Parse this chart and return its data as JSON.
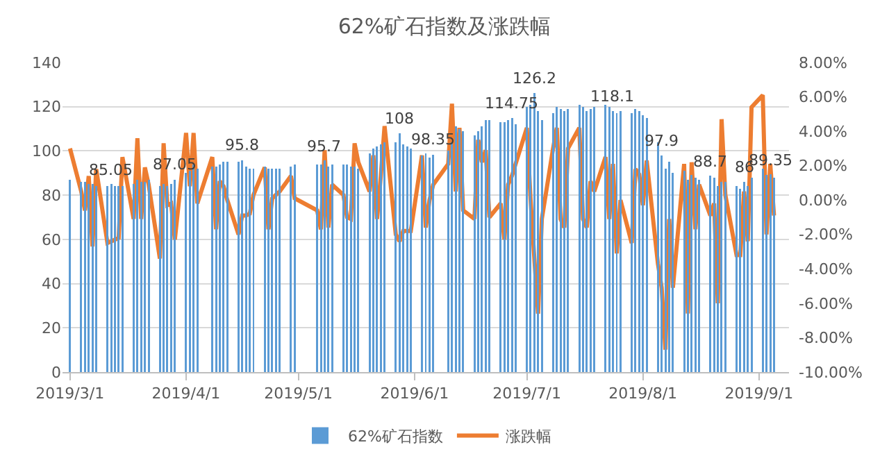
{
  "chart_data": {
    "type": "bar",
    "title": "62%矿石指数及涨跌幅",
    "x": [
      "2019-03-01",
      "2019-03-04",
      "2019-03-05",
      "2019-03-06",
      "2019-03-07",
      "2019-03-08",
      "2019-03-11",
      "2019-03-12",
      "2019-03-13",
      "2019-03-14",
      "2019-03-15",
      "2019-03-18",
      "2019-03-19",
      "2019-03-20",
      "2019-03-21",
      "2019-03-22",
      "2019-03-25",
      "2019-03-26",
      "2019-03-27",
      "2019-03-28",
      "2019-03-29",
      "2019-04-01",
      "2019-04-02",
      "2019-04-03",
      "2019-04-04",
      "2019-04-08",
      "2019-04-09",
      "2019-04-10",
      "2019-04-11",
      "2019-04-12",
      "2019-04-15",
      "2019-04-16",
      "2019-04-17",
      "2019-04-18",
      "2019-04-19",
      "2019-04-22",
      "2019-04-23",
      "2019-04-24",
      "2019-04-25",
      "2019-04-26",
      "2019-04-29",
      "2019-04-30",
      "2019-05-06",
      "2019-05-07",
      "2019-05-08",
      "2019-05-09",
      "2019-05-10",
      "2019-05-13",
      "2019-05-14",
      "2019-05-15",
      "2019-05-16",
      "2019-05-17",
      "2019-05-20",
      "2019-05-21",
      "2019-05-22",
      "2019-05-23",
      "2019-05-24",
      "2019-05-27",
      "2019-05-28",
      "2019-05-29",
      "2019-05-30",
      "2019-05-31",
      "2019-06-03",
      "2019-06-04",
      "2019-06-05",
      "2019-06-06",
      "2019-06-10",
      "2019-06-11",
      "2019-06-12",
      "2019-06-13",
      "2019-06-14",
      "2019-06-17",
      "2019-06-18",
      "2019-06-19",
      "2019-06-20",
      "2019-06-21",
      "2019-06-24",
      "2019-06-25",
      "2019-06-26",
      "2019-06-27",
      "2019-06-28",
      "2019-07-01",
      "2019-07-02",
      "2019-07-03",
      "2019-07-04",
      "2019-07-05",
      "2019-07-08",
      "2019-07-09",
      "2019-07-10",
      "2019-07-11",
      "2019-07-12",
      "2019-07-15",
      "2019-07-16",
      "2019-07-17",
      "2019-07-18",
      "2019-07-19",
      "2019-07-22",
      "2019-07-23",
      "2019-07-24",
      "2019-07-25",
      "2019-07-26",
      "2019-07-29",
      "2019-07-30",
      "2019-07-31",
      "2019-08-01",
      "2019-08-02",
      "2019-08-05",
      "2019-08-06",
      "2019-08-07",
      "2019-08-08",
      "2019-08-09",
      "2019-08-12",
      "2019-08-13",
      "2019-08-14",
      "2019-08-15",
      "2019-08-16",
      "2019-08-19",
      "2019-08-20",
      "2019-08-21",
      "2019-08-22",
      "2019-08-23",
      "2019-08-26",
      "2019-08-27",
      "2019-08-28",
      "2019-08-29",
      "2019-08-30",
      "2019-09-02",
      "2019-09-03",
      "2019-09-04",
      "2019-09-05"
    ],
    "series": [
      {
        "name": "62%矿石指数",
        "color": "#5b9bd5",
        "values": [
          87,
          86,
          86,
          85,
          85,
          84,
          84,
          85.05,
          84,
          84,
          84,
          85,
          87,
          86,
          86,
          87,
          84,
          85,
          84,
          85,
          87.05,
          90,
          91,
          94,
          92,
          93,
          93,
          94,
          95,
          95,
          95,
          95.8,
          93,
          92,
          92,
          93,
          92,
          92,
          92,
          92,
          93,
          94,
          94,
          94,
          95.7,
          93,
          94,
          94,
          94,
          93,
          93,
          92,
          99,
          101,
          102,
          103,
          104,
          104,
          108,
          103,
          102,
          101,
          98,
          99,
          97,
          98.35,
          100,
          104,
          111,
          110,
          109,
          107,
          109,
          111,
          114,
          114,
          113,
          113,
          114,
          114.75,
          112,
          120,
          121,
          126.2,
          118,
          114,
          117,
          120,
          119,
          118,
          119,
          121,
          120,
          118,
          119,
          120,
          121,
          120,
          118.1,
          117,
          118,
          117,
          119,
          118,
          116,
          115,
          104,
          97.9,
          92,
          95,
          90,
          91,
          87,
          89,
          88,
          87,
          88.7,
          88,
          84,
          86,
          86,
          84,
          83,
          86,
          84,
          88,
          92,
          89,
          89.35,
          88
        ],
        "value_labels": [
          null,
          null,
          null,
          null,
          null,
          null,
          null,
          "85.05",
          null,
          null,
          null,
          null,
          null,
          null,
          null,
          null,
          null,
          null,
          null,
          null,
          "87.05",
          null,
          null,
          null,
          null,
          null,
          null,
          null,
          null,
          null,
          null,
          "95.8",
          null,
          null,
          null,
          null,
          null,
          null,
          null,
          null,
          null,
          null,
          null,
          null,
          "95.7",
          null,
          null,
          null,
          null,
          null,
          null,
          null,
          null,
          null,
          null,
          null,
          null,
          null,
          "108",
          null,
          null,
          null,
          null,
          null,
          null,
          "98.35",
          null,
          null,
          null,
          null,
          null,
          null,
          null,
          null,
          null,
          null,
          null,
          null,
          null,
          "114.75",
          null,
          null,
          null,
          "126.2",
          null,
          null,
          null,
          null,
          null,
          null,
          null,
          null,
          null,
          null,
          null,
          null,
          null,
          null,
          "118.1",
          null,
          null,
          null,
          null,
          null,
          null,
          null,
          null,
          "97.9",
          null,
          null,
          null,
          null,
          null,
          null,
          null,
          null,
          "88.7",
          null,
          null,
          null,
          null,
          null,
          null,
          "86",
          null,
          null,
          null,
          null,
          "89.35",
          null
        ]
      },
      {
        "name": "涨跌幅",
        "type": "line",
        "axis": "y2",
        "color": "#ed7d31",
        "values": [
          3.0,
          0.5,
          -0.6,
          1.4,
          -2.7,
          1.8,
          -2.5,
          -2.4,
          -2.3,
          -2.2,
          2.5,
          -1.1,
          3.6,
          -1.1,
          1.9,
          0.9,
          -3.4,
          3.3,
          -0.3,
          -0.2,
          -2.3,
          3.9,
          0.8,
          3.9,
          -0.2,
          2.5,
          -1.7,
          1.1,
          0.8,
          0.0,
          -2.0,
          -0.9,
          -0.9,
          -0.8,
          0.3,
          1.9,
          -1.7,
          0.1,
          0.3,
          0.5,
          1.4,
          0.1,
          -0.6,
          -1.7,
          2.9,
          -1.6,
          0.9,
          0.3,
          -1.0,
          -1.1,
          3.3,
          2.2,
          0.5,
          2.6,
          -1.1,
          1.4,
          4.3,
          -2.0,
          -2.4,
          -1.8,
          -1.8,
          -1.8,
          2.6,
          -1.6,
          0.0,
          0.9,
          2.1,
          5.6,
          0.5,
          4.2,
          -0.6,
          -1.1,
          3.5,
          2.2,
          2.9,
          -1.0,
          -0.2,
          -2.3,
          0.9,
          1.4,
          2.1,
          4.2,
          0.0,
          -3.4,
          -6.6,
          -1.1,
          3.0,
          4.2,
          -1.1,
          -1.6,
          3.0,
          4.2,
          -1.1,
          -1.6,
          1.1,
          0.5,
          2.5,
          -1.1,
          2.1,
          -3.1,
          0.0,
          -2.5,
          1.8,
          1.5,
          -0.3,
          2.3,
          -3.7,
          -5.1,
          -8.7,
          -1.1,
          -5.1,
          2.1,
          -6.6,
          2.2,
          -1.7,
          0.9,
          -0.9,
          -0.2,
          -6.0,
          4.7,
          0.3,
          -3.2,
          -3.2,
          0.5,
          -2.4,
          5.4,
          6.1,
          -2.0,
          2.1,
          -0.9
        ]
      }
    ],
    "xlim": [
      "2019-02-27",
      "2019-09-09"
    ],
    "xticks": [
      {
        "value": "2019-03-01",
        "label": "2019/3/1"
      },
      {
        "value": "2019-04-01",
        "label": "2019/4/1"
      },
      {
        "value": "2019-05-01",
        "label": "2019/5/1"
      },
      {
        "value": "2019-06-01",
        "label": "2019/6/1"
      },
      {
        "value": "2019-07-01",
        "label": "2019/7/1"
      },
      {
        "value": "2019-08-01",
        "label": "2019/8/1"
      },
      {
        "value": "2019-09-01",
        "label": "2019/9/1"
      }
    ],
    "ylim": [
      0,
      140
    ],
    "yticks": [
      0,
      20,
      40,
      60,
      80,
      100,
      120,
      140
    ],
    "y2lim": [
      -10,
      8
    ],
    "y2ticks": [
      {
        "value": -10,
        "label": "-10.00%"
      },
      {
        "value": -8,
        "label": "-8.00%"
      },
      {
        "value": -6,
        "label": "-6.00%"
      },
      {
        "value": -4,
        "label": "-4.00%"
      },
      {
        "value": -2,
        "label": "-2.00%"
      },
      {
        "value": 0,
        "label": "0.00%"
      },
      {
        "value": 2,
        "label": "2.00%"
      },
      {
        "value": 4,
        "label": "4.00%"
      },
      {
        "value": 6,
        "label": "6.00%"
      },
      {
        "value": 8,
        "label": "8.00%"
      }
    ],
    "grid": "y",
    "legend": "bottom",
    "marker": "none",
    "line_style": "solid"
  }
}
